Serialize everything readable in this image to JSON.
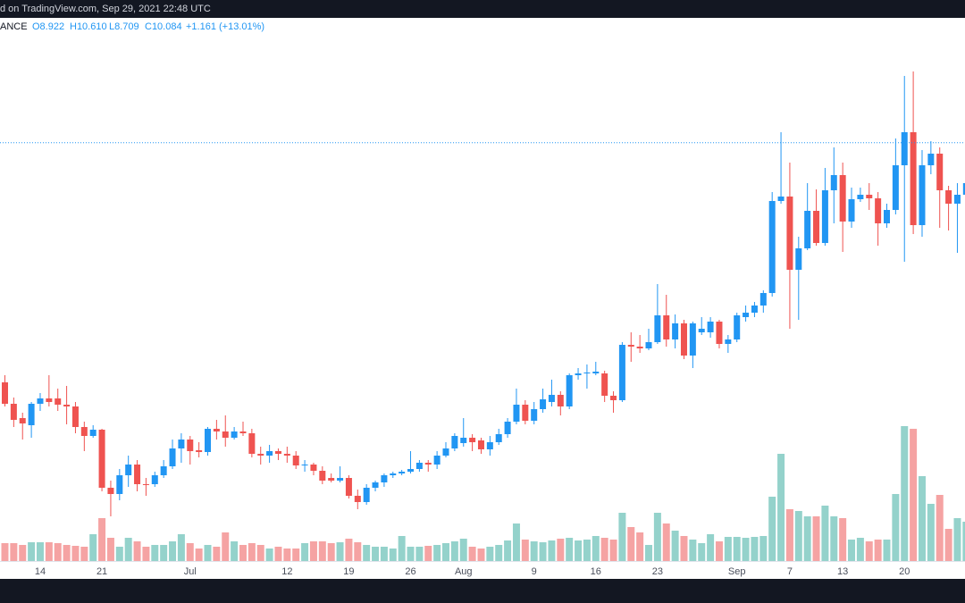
{
  "header": {
    "text": "d on TradingView.com, Sep 29, 2021 22:48 UTC"
  },
  "chart_data": {
    "type": "candlestick",
    "legend": {
      "symbol": "ANCE",
      "open": "O8.922",
      "high": "H10.610",
      "low": "L8.709",
      "close": "C10.084",
      "change": "+1.161 (+13.01%)"
    },
    "categories": [
      null,
      null,
      null,
      null,
      "14",
      null,
      null,
      null,
      null,
      null,
      null,
      "21",
      null,
      null,
      null,
      null,
      null,
      null,
      null,
      null,
      null,
      "Jul",
      null,
      null,
      null,
      null,
      null,
      null,
      null,
      null,
      null,
      null,
      "12",
      null,
      null,
      null,
      null,
      null,
      null,
      "19",
      null,
      null,
      null,
      null,
      null,
      null,
      "26",
      null,
      null,
      null,
      null,
      null,
      "Aug",
      null,
      null,
      null,
      null,
      null,
      null,
      null,
      "9",
      null,
      null,
      null,
      null,
      null,
      null,
      "16",
      null,
      null,
      null,
      null,
      null,
      null,
      "23",
      null,
      null,
      null,
      null,
      null,
      null,
      null,
      null,
      "Sep",
      null,
      null,
      null,
      null,
      null,
      "7",
      null,
      null,
      null,
      null,
      null,
      "13",
      null,
      null,
      null,
      null,
      null,
      null,
      "20",
      null,
      null,
      null,
      null,
      null,
      null,
      null
    ],
    "open": [
      4.72,
      4.24,
      3.92,
      3.76,
      4.24,
      4.36,
      4.36,
      4.22,
      4.18,
      3.72,
      3.52,
      3.66,
      2.36,
      2.22,
      2.64,
      2.88,
      2.44,
      2.44,
      2.64,
      2.84,
      3.24,
      3.44,
      3.2,
      3.16,
      3.68,
      3.62,
      3.48,
      3.62,
      3.58,
      3.12,
      3.08,
      3.18,
      3.12,
      3.08,
      2.86,
      2.88,
      2.74,
      2.58,
      2.52,
      2.58,
      2.18,
      2.04,
      2.36,
      2.48,
      2.64,
      2.68,
      2.72,
      2.78,
      2.92,
      2.88,
      3.08,
      3.24,
      3.36,
      3.48,
      3.42,
      3.22,
      3.38,
      3.56,
      3.84,
      4.22,
      3.86,
      4.12,
      4.28,
      4.44,
      4.18,
      4.88,
      4.92,
      4.92,
      4.92,
      4.42,
      4.32,
      5.56,
      5.52,
      5.48,
      5.62,
      6.22,
      5.68,
      6.04,
      5.32,
      5.84,
      5.84,
      6.08,
      5.58,
      5.68,
      6.18,
      6.28,
      6.44,
      6.72,
      8.78,
      8.88,
      7.24,
      7.72,
      8.56,
      7.84,
      9.02,
      9.36,
      8.32,
      8.82,
      8.92,
      8.84,
      8.28,
      8.58,
      9.58,
      10.32,
      8.24,
      9.58,
      9.84,
      9.02,
      8.72,
      8.92
    ],
    "high": [
      4.88,
      4.38,
      4.04,
      4.28,
      4.48,
      4.88,
      4.58,
      4.64,
      4.28,
      3.84,
      3.76,
      3.68,
      2.52,
      2.78,
      3.08,
      2.98,
      2.58,
      2.72,
      2.98,
      3.44,
      3.58,
      3.52,
      3.38,
      3.72,
      3.88,
      3.98,
      3.72,
      3.84,
      3.68,
      3.28,
      3.32,
      3.24,
      3.28,
      3.18,
      2.98,
      2.92,
      2.84,
      2.68,
      2.84,
      2.64,
      2.32,
      2.44,
      2.52,
      2.68,
      2.72,
      2.76,
      3.18,
      2.98,
      2.98,
      3.18,
      3.38,
      3.58,
      3.92,
      3.56,
      3.48,
      3.52,
      3.68,
      3.92,
      4.58,
      4.32,
      4.28,
      4.58,
      4.78,
      4.52,
      4.92,
      5.04,
      5.12,
      5.18,
      4.98,
      4.52,
      5.62,
      5.84,
      5.78,
      5.92,
      6.92,
      6.68,
      6.24,
      6.12,
      6.08,
      6.18,
      6.18,
      6.12,
      5.78,
      6.28,
      6.44,
      6.52,
      6.78,
      8.98,
      10.32,
      9.64,
      7.98,
      9.18,
      9.04,
      9.52,
      9.98,
      9.64,
      9.08,
      9.08,
      9.18,
      8.98,
      8.72,
      10.18,
      11.58,
      11.68,
      9.92,
      10.12,
      9.98,
      9.12,
      9.18,
      9.68
    ],
    "low": [
      4.18,
      3.72,
      3.44,
      3.48,
      4.08,
      4.18,
      4.08,
      3.78,
      3.58,
      3.18,
      3.48,
      2.28,
      1.72,
      2.08,
      2.38,
      2.28,
      2.18,
      2.38,
      2.58,
      2.78,
      2.92,
      2.88,
      3.04,
      3.08,
      3.44,
      3.28,
      3.44,
      3.52,
      3.04,
      2.88,
      2.92,
      2.98,
      2.92,
      2.78,
      2.72,
      2.64,
      2.44,
      2.48,
      2.48,
      2.12,
      1.88,
      1.98,
      2.28,
      2.38,
      2.58,
      2.64,
      2.68,
      2.72,
      2.72,
      2.78,
      3.04,
      3.18,
      3.28,
      3.18,
      3.12,
      3.08,
      3.32,
      3.48,
      3.78,
      3.78,
      3.78,
      4.04,
      4.18,
      3.98,
      4.12,
      4.78,
      4.58,
      4.88,
      4.28,
      4.04,
      4.28,
      5.18,
      5.38,
      5.44,
      5.58,
      5.52,
      5.48,
      5.24,
      5.04,
      5.78,
      5.72,
      5.48,
      5.38,
      5.62,
      6.08,
      6.18,
      6.28,
      6.64,
      8.72,
      5.92,
      6.12,
      7.68,
      7.78,
      7.78,
      8.28,
      7.64,
      8.18,
      8.76,
      8.58,
      7.78,
      8.18,
      8.48,
      7.42,
      8.04,
      7.98,
      9.38,
      8.18,
      8.12,
      7.62,
      8.58
    ],
    "close": [
      4.24,
      3.88,
      3.8,
      4.24,
      4.36,
      4.28,
      4.22,
      4.18,
      3.72,
      3.52,
      3.66,
      2.36,
      2.22,
      2.64,
      2.88,
      2.44,
      2.42,
      2.64,
      2.84,
      3.24,
      3.44,
      3.18,
      3.16,
      3.68,
      3.62,
      3.48,
      3.62,
      3.58,
      3.12,
      3.08,
      3.18,
      3.12,
      3.08,
      2.86,
      2.88,
      2.74,
      2.52,
      2.52,
      2.58,
      2.18,
      2.04,
      2.36,
      2.48,
      2.64,
      2.68,
      2.72,
      2.78,
      2.92,
      2.88,
      3.08,
      3.24,
      3.52,
      3.48,
      3.38,
      3.22,
      3.38,
      3.56,
      3.84,
      4.22,
      3.86,
      4.12,
      4.34,
      4.44,
      4.18,
      4.88,
      4.92,
      4.94,
      4.96,
      4.42,
      4.32,
      5.56,
      5.52,
      5.48,
      5.62,
      6.22,
      5.68,
      6.04,
      5.32,
      6.04,
      5.92,
      6.08,
      5.58,
      5.68,
      6.22,
      6.28,
      6.44,
      6.72,
      8.78,
      8.88,
      7.24,
      7.72,
      8.56,
      7.84,
      9.02,
      9.36,
      8.32,
      8.82,
      8.92,
      8.84,
      8.28,
      8.58,
      9.58,
      10.32,
      8.24,
      9.58,
      9.84,
      9.02,
      8.72,
      8.92,
      9.18
    ],
    "volume": [
      20,
      20,
      18,
      21,
      21,
      21,
      20,
      18,
      17,
      16,
      30,
      48,
      26,
      16,
      26,
      22,
      16,
      18,
      18,
      22,
      30,
      20,
      14,
      18,
      16,
      32,
      22,
      18,
      20,
      18,
      14,
      16,
      14,
      14,
      20,
      22,
      22,
      20,
      21,
      25,
      21,
      18,
      16,
      16,
      14,
      28,
      16,
      16,
      17,
      18,
      20,
      22,
      25,
      16,
      14,
      16,
      18,
      23,
      42,
      24,
      22,
      21,
      23,
      25,
      26,
      23,
      24,
      28,
      26,
      24,
      54,
      38,
      32,
      18,
      54,
      42,
      34,
      28,
      24,
      20,
      30,
      22,
      27,
      27,
      26,
      27,
      28,
      72,
      120,
      58,
      56,
      50,
      50,
      62,
      50,
      48,
      24,
      26,
      22,
      24,
      24,
      75,
      151,
      148,
      95,
      64,
      74,
      36,
      48,
      44
    ],
    "ylim": [
      0.72,
      12.88
    ],
    "y2lim": [
      0,
      608
    ],
    "price_line": 10.084,
    "up_color": "#2196f3",
    "down_color": "#ef5350",
    "volume_up_color": "#94d2cb",
    "volume_down_color": "#f5a3a3"
  }
}
